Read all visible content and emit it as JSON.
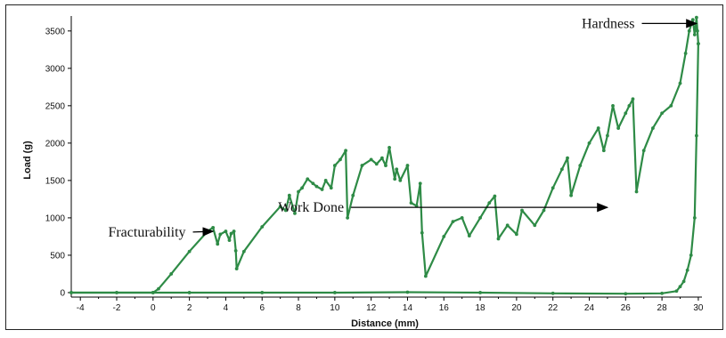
{
  "chart_data": {
    "type": "line",
    "title": "",
    "xlabel": "Distance (mm)",
    "ylabel": "Load (g)",
    "xlim": [
      -4.5,
      30.2
    ],
    "ylim": [
      -60,
      3700
    ],
    "x_ticks": [
      -4,
      -2,
      0,
      2,
      4,
      6,
      8,
      10,
      12,
      14,
      16,
      18,
      20,
      22,
      24,
      26,
      28,
      30
    ],
    "y_ticks": [
      0,
      500,
      1000,
      1500,
      2000,
      2500,
      3000,
      3500
    ],
    "grid": false,
    "legend": "none",
    "series_color": "#2e8b46",
    "series": [
      {
        "name": "",
        "segment": "compression",
        "x": [
          -4.5,
          0,
          0.3,
          1,
          2,
          3,
          3.3,
          3.55,
          3.7,
          4,
          4.2,
          4.3,
          4.45,
          4.55,
          4.6,
          5,
          6,
          7,
          7.3,
          7.5,
          7.8,
          8,
          8.2,
          8.5,
          8.8,
          9,
          9.3,
          9.5,
          9.8,
          10,
          10.3,
          10.6,
          10.7,
          11,
          11.5,
          12,
          12.3,
          12.6,
          12.8,
          13,
          13.3,
          13.4,
          13.6,
          14,
          14.2,
          14.5,
          14.7,
          14.8,
          15,
          16,
          16.5,
          17,
          17.4,
          18,
          18.5,
          18.8,
          19,
          19.5,
          20,
          20.3,
          21,
          21.5,
          22,
          22.5,
          22.8,
          23,
          23.5,
          24,
          24.5,
          24.8,
          25,
          25.3,
          25.6,
          26,
          26.2,
          26.4,
          26.6,
          27,
          27.5,
          28,
          28.5,
          29,
          29.3,
          29.5,
          29.7,
          29.8,
          29.9,
          29.95,
          30
        ],
        "y": [
          0,
          0,
          50,
          250,
          550,
          820,
          870,
          650,
          780,
          820,
          700,
          790,
          820,
          560,
          320,
          550,
          880,
          1150,
          1100,
          1300,
          1060,
          1350,
          1400,
          1520,
          1460,
          1420,
          1380,
          1500,
          1400,
          1700,
          1780,
          1900,
          1000,
          1300,
          1700,
          1780,
          1720,
          1800,
          1700,
          1940,
          1520,
          1650,
          1500,
          1700,
          1200,
          1160,
          1460,
          800,
          220,
          750,
          950,
          1000,
          760,
          1000,
          1200,
          1290,
          720,
          900,
          780,
          1100,
          900,
          1100,
          1400,
          1650,
          1800,
          1300,
          1700,
          2000,
          2200,
          1900,
          2100,
          2500,
          2200,
          2400,
          2500,
          2590,
          1350,
          1900,
          2200,
          2400,
          2500,
          2800,
          3200,
          3500,
          3650,
          3450,
          3680,
          3500,
          3330
        ]
      },
      {
        "name": "",
        "segment": "return",
        "x": [
          30,
          29.9,
          29.8,
          29.6,
          29.4,
          29.2,
          29,
          28.8,
          28,
          26,
          22,
          18,
          14,
          10,
          6,
          2,
          0,
          -2,
          -4.5
        ],
        "y": [
          3330,
          2100,
          1000,
          500,
          300,
          150,
          80,
          20,
          -10,
          -15,
          -10,
          0,
          5,
          0,
          0,
          0,
          0,
          0,
          0
        ]
      }
    ],
    "annotations": [
      {
        "text": "Hardness",
        "at": [
          26.5,
          3600
        ],
        "arrow_to": [
          29.9,
          3600
        ]
      },
      {
        "text": "Work Done",
        "at": [
          10.5,
          1140
        ],
        "arrow_to": [
          25,
          1140
        ]
      },
      {
        "text": "Fracturability",
        "at": [
          1.8,
          810
        ],
        "arrow_to": [
          3.3,
          820
        ]
      }
    ]
  }
}
